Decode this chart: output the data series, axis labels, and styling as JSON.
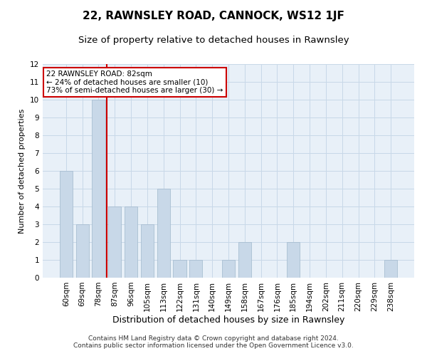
{
  "title": "22, RAWNSLEY ROAD, CANNOCK, WS12 1JF",
  "subtitle": "Size of property relative to detached houses in Rawnsley",
  "xlabel": "Distribution of detached houses by size in Rawnsley",
  "ylabel": "Number of detached properties",
  "categories": [
    "60sqm",
    "69sqm",
    "78sqm",
    "87sqm",
    "96sqm",
    "105sqm",
    "113sqm",
    "122sqm",
    "131sqm",
    "140sqm",
    "149sqm",
    "158sqm",
    "167sqm",
    "176sqm",
    "185sqm",
    "194sqm",
    "202sqm",
    "211sqm",
    "220sqm",
    "229sqm",
    "238sqm"
  ],
  "values": [
    6,
    3,
    10,
    4,
    4,
    3,
    5,
    1,
    1,
    0,
    1,
    2,
    0,
    0,
    2,
    0,
    0,
    0,
    0,
    0,
    1
  ],
  "bar_color": "#c8d8e8",
  "bar_edge_color": "#a0b8cc",
  "highlight_index": 2,
  "highlight_color": "#cc0000",
  "ylim": [
    0,
    12
  ],
  "yticks": [
    0,
    1,
    2,
    3,
    4,
    5,
    6,
    7,
    8,
    9,
    10,
    11,
    12
  ],
  "annotation_text": "22 RAWNSLEY ROAD: 82sqm\n← 24% of detached houses are smaller (10)\n73% of semi-detached houses are larger (30) →",
  "annotation_box_color": "#ffffff",
  "annotation_box_edge": "#cc0000",
  "grid_color": "#c8d8e8",
  "background_color": "#e8f0f8",
  "footer_line1": "Contains HM Land Registry data © Crown copyright and database right 2024.",
  "footer_line2": "Contains public sector information licensed under the Open Government Licence v3.0.",
  "title_fontsize": 11,
  "subtitle_fontsize": 9.5,
  "xlabel_fontsize": 9,
  "ylabel_fontsize": 8,
  "tick_fontsize": 7.5,
  "annot_fontsize": 7.5,
  "footer_fontsize": 6.5,
  "vline_x": 2.5
}
